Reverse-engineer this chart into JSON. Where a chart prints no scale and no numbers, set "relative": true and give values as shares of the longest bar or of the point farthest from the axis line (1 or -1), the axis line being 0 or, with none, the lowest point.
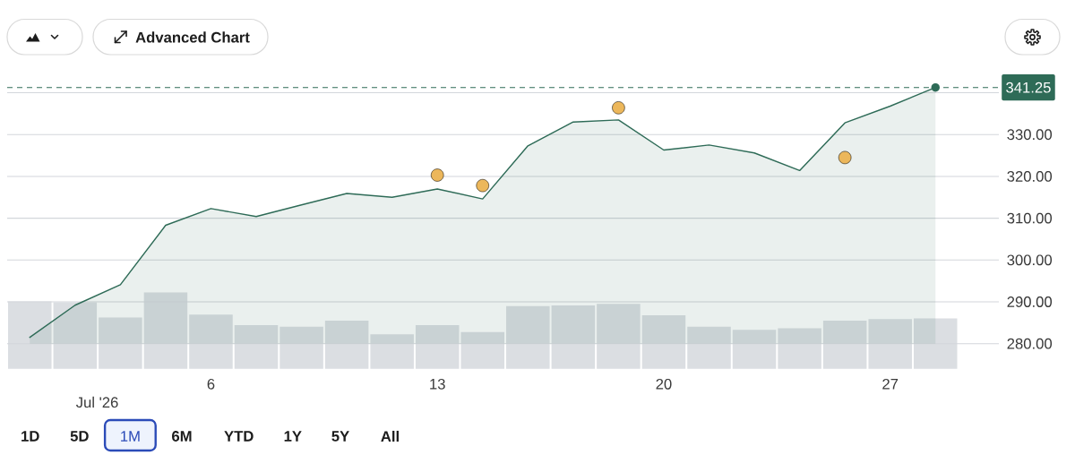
{
  "chart_data": [
    {
      "type": "area",
      "categories": [
        null,
        null,
        null,
        null,
        "6",
        null,
        null,
        null,
        null,
        "13",
        null,
        null,
        null,
        null,
        "20",
        null,
        null,
        null,
        null,
        "27",
        null
      ],
      "xlabel": "Jul '26",
      "series": [
        {
          "color": "#2e6b57",
          "values": [
            281.5,
            289.2,
            294.1,
            308.3,
            312.3,
            310.4,
            313.2,
            315.9,
            315.0,
            317.0,
            314.6,
            327.3,
            333.0,
            333.5,
            326.3,
            327.5,
            325.6,
            321.4,
            332.8,
            336.8,
            341.25
          ]
        },
        {
          "type": "scatter",
          "marker": "circle",
          "color": "#ecb75b",
          "values": [
            null,
            null,
            null,
            null,
            null,
            null,
            null,
            null,
            null,
            320.3,
            317.8,
            null,
            null,
            336.4,
            null,
            null,
            null,
            null,
            324.5,
            null,
            null
          ]
        }
      ],
      "ylim": [
        280,
        341.25
      ],
      "yticks": [
        {
          "value": 280,
          "label": "280.00"
        },
        {
          "value": 290,
          "label": "290.00"
        },
        {
          "value": 300,
          "label": "300.00"
        },
        {
          "value": 310,
          "label": "310.00"
        },
        {
          "value": 320,
          "label": "320.00"
        },
        {
          "value": 330,
          "label": "330.00"
        },
        {
          "value": 340,
          "label": null
        }
      ],
      "grid": "y",
      "ref_lines": [
        {
          "axis": "y",
          "value": 341.25,
          "label": "341.25",
          "color": "#2e6b57",
          "line_style": "dashed"
        }
      ],
      "annotations": [
        "Advanced Chart",
        "1D",
        "5D",
        "1M",
        "6M",
        "YTD",
        "1Y",
        "5Y",
        "All"
      ]
    },
    {
      "type": "bar",
      "categories": [
        null,
        null,
        null,
        null,
        "6",
        null,
        null,
        null,
        null,
        "13",
        null,
        null,
        null,
        null,
        "20",
        null,
        null,
        null,
        null,
        "27",
        null
      ],
      "values": [
        0.88,
        0.87,
        0.67,
        1,
        0.71,
        0.57,
        0.55,
        0.63,
        0.45,
        0.57,
        0.48,
        0.82,
        0.83,
        0.85,
        0.7,
        0.55,
        0.51,
        0.53,
        0.63,
        0.65,
        0.66
      ],
      "color": "#dbdee2",
      "relative": true,
      "tick_labels": false
    }
  ]
}
